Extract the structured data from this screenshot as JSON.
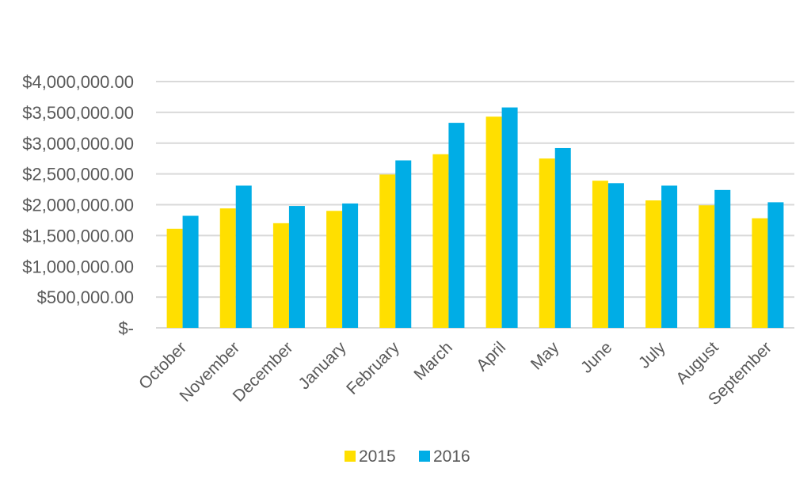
{
  "chart_data": {
    "type": "bar",
    "title": "",
    "xlabel": "",
    "ylabel": "",
    "categories": [
      "October",
      "November",
      "December",
      "January",
      "February",
      "March",
      "April",
      "May",
      "June",
      "July",
      "August",
      "September"
    ],
    "series": [
      {
        "name": "2015",
        "color": "#FFDF00",
        "values": [
          1610000,
          1940000,
          1700000,
          1900000,
          2490000,
          2820000,
          3430000,
          2750000,
          2390000,
          2070000,
          1990000,
          1780000
        ]
      },
      {
        "name": "2016",
        "color": "#00ADE6",
        "values": [
          1820000,
          2310000,
          1980000,
          2020000,
          2720000,
          3330000,
          3580000,
          2920000,
          2350000,
          2310000,
          2240000,
          2040000
        ]
      }
    ],
    "ylim": [
      0,
      4000000
    ],
    "y_ticks": [
      {
        "value": 0,
        "label": "$-"
      },
      {
        "value": 500000,
        "label": "$500,000.00"
      },
      {
        "value": 1000000,
        "label": "$1,000,000.00"
      },
      {
        "value": 1500000,
        "label": "$1,500,000.00"
      },
      {
        "value": 2000000,
        "label": "$2,000,000.00"
      },
      {
        "value": 2500000,
        "label": "$2,500,000.00"
      },
      {
        "value": 3000000,
        "label": "$3,000,000.00"
      },
      {
        "value": 3500000,
        "label": "$3,500,000.00"
      },
      {
        "value": 4000000,
        "label": "$4,000,000.00"
      }
    ],
    "grid": true,
    "gridline_color": "#D9D9D9",
    "legend_position": "bottom"
  }
}
